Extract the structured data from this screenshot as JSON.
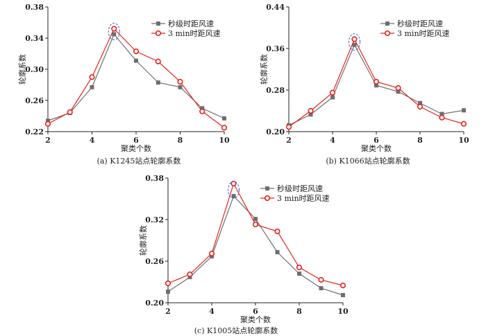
{
  "colors": {
    "series1": "#6e6e6e",
    "series2": "#e8201c",
    "highlight": "#2f5fd0"
  },
  "chart_data": [
    {
      "type": "line",
      "caption": "(a)   K1245站点轮廓系数",
      "xlabel": "聚类个数",
      "ylabel": "轮廓系数",
      "xlim": [
        2,
        10
      ],
      "ylim": [
        0.22,
        0.38
      ],
      "xticks": [
        "2",
        "4",
        "6",
        "8",
        "10"
      ],
      "yticks": [
        "0.22",
        "0.26",
        "0.30",
        "0.34",
        "0.38"
      ],
      "x": [
        2,
        3,
        4,
        5,
        6,
        7,
        8,
        9,
        10
      ],
      "highlight_x": 5,
      "legend_position": "top-right",
      "series": [
        {
          "name": "秒级时距风速",
          "marker": "square",
          "values": [
            0.234,
            0.244,
            0.277,
            0.345,
            0.311,
            0.283,
            0.277,
            0.25,
            0.237
          ]
        },
        {
          "name": "3 min时距风速",
          "marker": "circle",
          "values": [
            0.23,
            0.245,
            0.29,
            0.352,
            0.323,
            0.31,
            0.284,
            0.246,
            0.225
          ]
        }
      ]
    },
    {
      "type": "line",
      "caption": "(b)   K1066站点轮廓系数",
      "xlabel": "聚类个数",
      "ylabel": "轮廓系数",
      "xlim": [
        2,
        10
      ],
      "ylim": [
        0.2,
        0.44
      ],
      "xticks": [
        "2",
        "4",
        "6",
        "8",
        "10"
      ],
      "yticks": [
        "0.20",
        "0.28",
        "0.36",
        "0.44"
      ],
      "x": [
        2,
        3,
        4,
        5,
        6,
        7,
        8,
        9,
        10
      ],
      "highlight_x": 5,
      "legend_position": "top-right",
      "series": [
        {
          "name": "秒级时距风速",
          "marker": "square",
          "values": [
            0.212,
            0.233,
            0.266,
            0.367,
            0.289,
            0.277,
            0.255,
            0.234,
            0.241
          ]
        },
        {
          "name": "3 min时距风速",
          "marker": "circle",
          "values": [
            0.209,
            0.24,
            0.275,
            0.378,
            0.296,
            0.284,
            0.248,
            0.227,
            0.215
          ]
        }
      ]
    },
    {
      "type": "line",
      "caption": "(c)   K1005站点轮廓系数",
      "xlabel": "聚类个数",
      "ylabel": "轮廓系数",
      "xlim": [
        2,
        10
      ],
      "ylim": [
        0.2,
        0.38
      ],
      "xticks": [
        "2",
        "4",
        "6",
        "8",
        "10"
      ],
      "yticks": [
        "0.20",
        "0.26",
        "0.32",
        "0.38"
      ],
      "x": [
        2,
        3,
        4,
        5,
        6,
        7,
        8,
        9,
        10
      ],
      "highlight_x": 5,
      "legend_position": "top-right",
      "series": [
        {
          "name": "秒级时距风速",
          "marker": "square",
          "values": [
            0.216,
            0.237,
            0.267,
            0.354,
            0.321,
            0.273,
            0.242,
            0.221,
            0.211
          ]
        },
        {
          "name": "3 min时距风速",
          "marker": "circle",
          "values": [
            0.228,
            0.241,
            0.271,
            0.372,
            0.313,
            0.303,
            0.251,
            0.233,
            0.225
          ]
        }
      ]
    }
  ]
}
